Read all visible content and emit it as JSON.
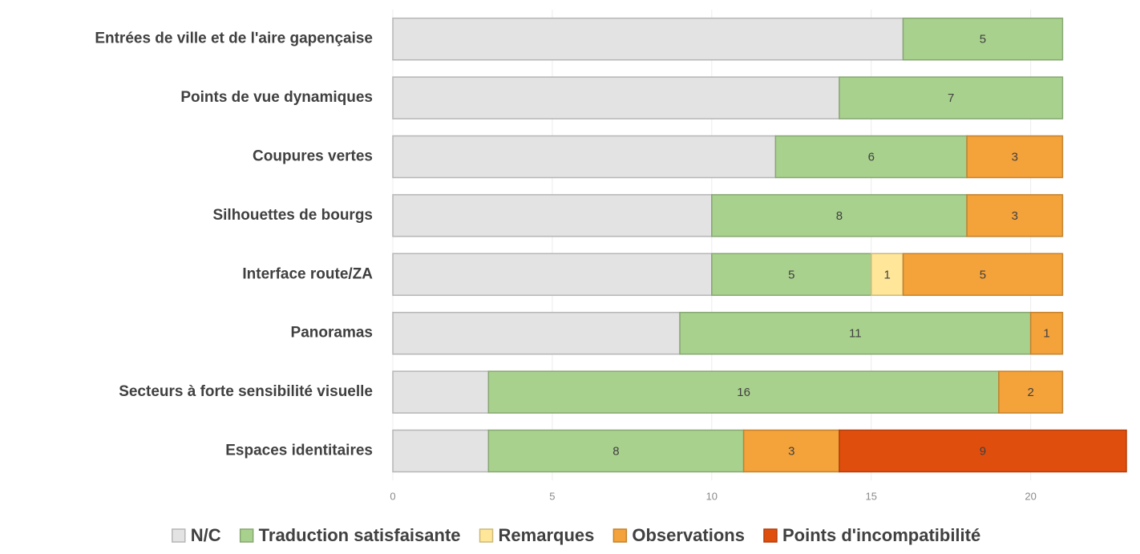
{
  "chart_data": {
    "type": "stacked-barh",
    "categories": [
      "Entrées de ville et de l'aire gapençaise",
      "Points de vue dynamiques",
      "Coupures vertes",
      "Silhouettes de bourgs",
      "Interface route/ZA",
      "Panoramas",
      "Secteurs à forte sensibilité visuelle",
      "Espaces identitaires"
    ],
    "series": [
      {
        "name": "N/C",
        "color": "#e3e3e3",
        "data_labels": false,
        "values": [
          16,
          14,
          12,
          10,
          10,
          9,
          3,
          3
        ]
      },
      {
        "name": "Traduction satisfaisante",
        "color": "#a9d18e",
        "data_labels": true,
        "values": [
          5,
          7,
          6,
          8,
          5,
          11,
          16,
          8
        ]
      },
      {
        "name": "Remarques",
        "color": "#ffe699",
        "data_labels": true,
        "values": [
          null,
          null,
          null,
          null,
          1,
          null,
          null,
          null
        ]
      },
      {
        "name": "Observations",
        "color": "#f4a23a",
        "data_labels": true,
        "values": [
          null,
          null,
          3,
          3,
          5,
          1,
          2,
          3
        ]
      },
      {
        "name": "Points d'incompatibilité",
        "color": "#e04e0e",
        "data_labels": true,
        "values": [
          null,
          null,
          null,
          null,
          null,
          null,
          null,
          9
        ]
      }
    ],
    "xlim": [
      0,
      23
    ],
    "xticks": [
      0,
      5,
      10,
      15,
      20
    ],
    "grid": true,
    "legend": "bottom"
  }
}
